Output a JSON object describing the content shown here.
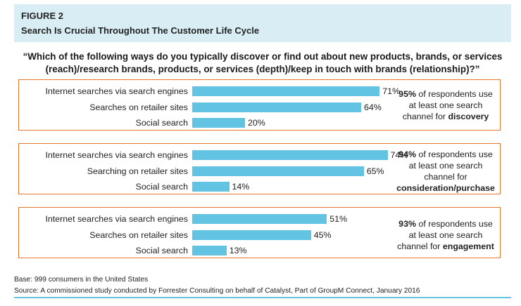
{
  "figure": {
    "label": "FIGURE 2",
    "title": "Search Is Crucial Throughout The Customer Life Cycle"
  },
  "question": "“Which of the following ways do you typically discover or find out about new products, brands, or services (reach)/research brands, products, or services (depth)/keep in touch with brands (relationship)?”",
  "chart_data": [
    {
      "type": "bar",
      "orientation": "horizontal",
      "categories": [
        "Internet searches via search engines",
        "Searches on retailer sites",
        "Social search"
      ],
      "values": [
        71,
        64,
        20
      ],
      "value_labels": [
        "71%",
        "64%",
        "20%"
      ],
      "xlim": [
        0,
        100
      ],
      "bar_color": "#62c3e3",
      "note": {
        "pct": "95%",
        "pre": " of respondents use at least one search channel for ",
        "stage": "discovery"
      }
    },
    {
      "type": "bar",
      "orientation": "horizontal",
      "categories": [
        "Internet searches via search engines",
        "Searching on retailer sites",
        "Social search"
      ],
      "values": [
        74,
        65,
        14
      ],
      "value_labels": [
        "74%",
        "65%",
        "14%"
      ],
      "xlim": [
        0,
        100
      ],
      "bar_color": "#62c3e3",
      "note": {
        "pct": "94%",
        "pre": " of respondents use at least one search channel for ",
        "stage": "consideration/purchase"
      }
    },
    {
      "type": "bar",
      "orientation": "horizontal",
      "categories": [
        "Internet searches via search engines",
        "Searches on retailer sites",
        "Social search"
      ],
      "values": [
        51,
        45,
        13
      ],
      "value_labels": [
        "51%",
        "45%",
        "13%"
      ],
      "xlim": [
        0,
        100
      ],
      "bar_color": "#62c3e3",
      "note": {
        "pct": "93%",
        "pre": " of respondents use at least one search channel for ",
        "stage": "engagement"
      }
    }
  ],
  "footer": {
    "base": "Base: 999 consumers in the United States",
    "source": "Source: A commissioned study conducted by Forrester Consulting on behalf of Catalyst, Part of GroupM Connect, January 2016"
  },
  "colors": {
    "header_bg": "#d9eef4",
    "panel_border": "#e4772d",
    "bar": "#62c3e3"
  }
}
